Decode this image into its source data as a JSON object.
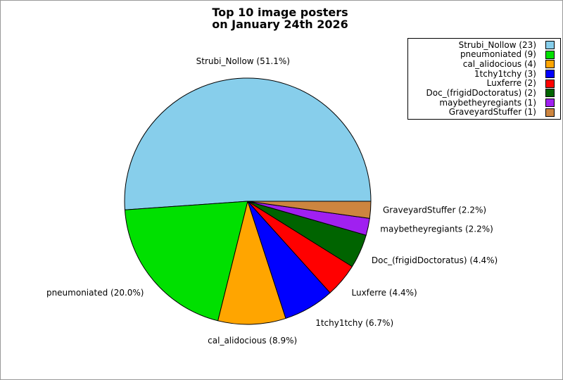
{
  "title": {
    "line1": "Top 10 image posters",
    "line2": "on January 24th 2026"
  },
  "chart_data": {
    "type": "pie",
    "title": "Top 10 image posters on January 24th 2026",
    "total_count": 45,
    "start_angle_deg": 0,
    "direction": "counterclockwise",
    "legend_position": "upper right",
    "slices": [
      {
        "name": "Strubi_Nollow",
        "count": 23,
        "percent": 51.1,
        "color": "#87CEEB"
      },
      {
        "name": "pneumoniated",
        "count": 9,
        "percent": 20.0,
        "color": "#00E000"
      },
      {
        "name": "cal_alidocious",
        "count": 4,
        "percent": 8.9,
        "color": "#FFA500"
      },
      {
        "name": "1tchy1tchy",
        "count": 3,
        "percent": 6.7,
        "color": "#0000FF"
      },
      {
        "name": "Luxferre",
        "count": 2,
        "percent": 4.4,
        "color": "#FF0000"
      },
      {
        "name": "Doc_(frigidDoctoratus)",
        "count": 2,
        "percent": 4.4,
        "color": "#006400"
      },
      {
        "name": "maybetheyregiants",
        "count": 1,
        "percent": 2.2,
        "color": "#A020F0"
      },
      {
        "name": "GraveyardStuffer",
        "count": 1,
        "percent": 2.2,
        "color": "#CD853F"
      }
    ],
    "outline_color": "#000000",
    "background_color": "#FFFFFF"
  }
}
